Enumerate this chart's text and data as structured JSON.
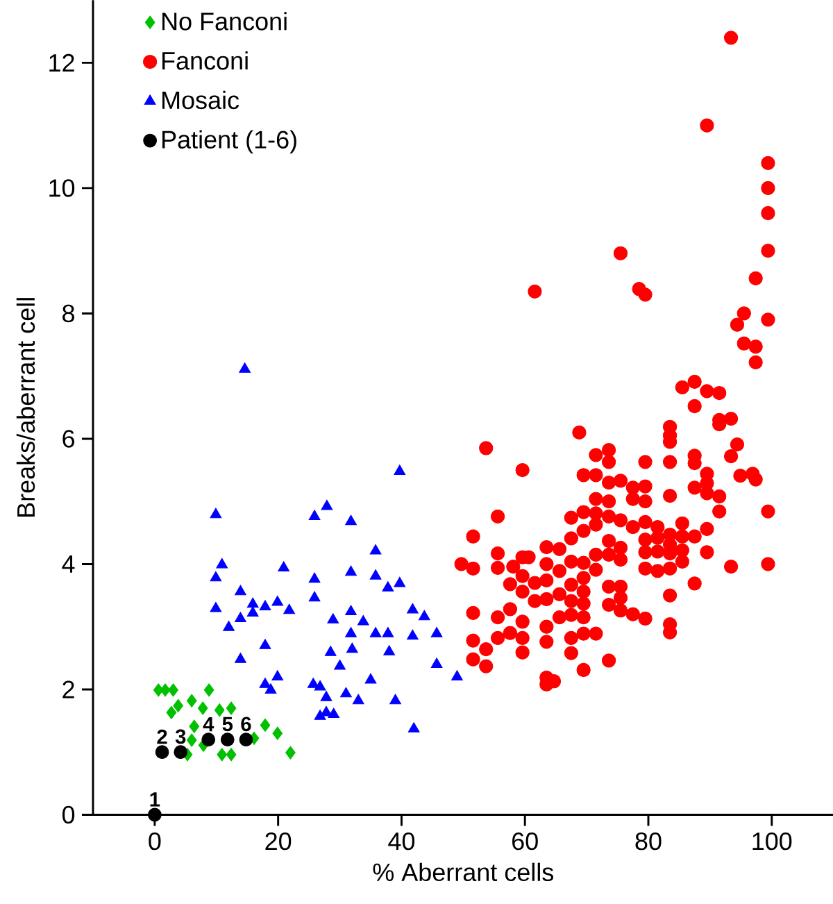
{
  "chart_data": {
    "type": "scatter",
    "xlabel": "% Aberrant cells",
    "ylabel": "Breaks/aberrant cell",
    "xlim": [
      -10,
      110
    ],
    "ylim": [
      0,
      13
    ],
    "xticks": [
      0,
      20,
      40,
      60,
      80,
      100
    ],
    "yticks": [
      0,
      2,
      4,
      6,
      8,
      10,
      12
    ],
    "legend": "top left",
    "series": [
      {
        "name": "No Fanconi",
        "color": "#00c000",
        "marker": "diamond",
        "x": [
          0.6,
          1.7,
          3.0,
          8.8,
          3.8,
          6.0,
          7.8,
          2.7,
          10.5,
          12.4,
          16.1,
          17.9,
          19.9,
          22.0,
          6.4,
          6.0,
          10.9,
          12.4,
          7.9,
          5.3
        ],
        "values": [
          1.99,
          1.99,
          1.99,
          1.99,
          1.74,
          1.82,
          1.7,
          1.63,
          1.67,
          1.7,
          1.22,
          1.43,
          1.3,
          0.99,
          1.41,
          1.19,
          0.96,
          0.96,
          1.11,
          0.96
        ]
      },
      {
        "name": "Fanconi",
        "color": "#ff0000",
        "marker": "circle",
        "x": [
          93.4,
          89.5,
          99.4,
          99.4,
          99.4,
          99.4,
          75.5,
          61.6,
          78.5,
          79.5,
          97.4,
          95.5,
          94.4,
          99.4,
          95.5,
          97.4,
          97.4,
          85.5,
          87.5,
          89.5,
          91.5,
          87.5,
          68.8,
          53.7,
          83.5,
          83.5,
          83.5,
          91.5,
          91.5,
          93.4,
          94.4,
          93.4,
          87.5,
          87.5,
          94.9,
          96.9,
          97.4,
          99.4,
          99.4,
          93.4,
          87.5,
          89.5,
          89.5,
          91.5,
          91.5,
          89.5,
          89.5,
          89.5,
          87.5,
          85.5,
          87.5,
          83.5,
          83.5,
          83.5,
          83.5,
          83.5,
          83.5,
          83.5,
          83.5,
          83.5,
          85.5,
          85.5,
          85.5,
          81.5,
          81.5,
          81.5,
          81.5,
          79.5,
          79.5,
          79.5,
          79.5,
          79.5,
          79.5,
          79.5,
          79.5,
          77.5,
          77.5,
          77.5,
          77.5,
          75.5,
          75.5,
          75.5,
          75.5,
          75.5,
          75.5,
          75.5,
          73.6,
          73.6,
          73.6,
          73.6,
          73.6,
          73.6,
          73.6,
          73.6,
          73.6,
          73.6,
          71.5,
          71.5,
          71.5,
          71.5,
          71.5,
          71.5,
          71.5,
          71.5,
          69.5,
          69.5,
          69.5,
          69.5,
          69.5,
          69.5,
          69.5,
          69.5,
          69.5,
          69.5,
          67.5,
          67.5,
          67.5,
          67.5,
          67.5,
          67.5,
          67.5,
          67.5,
          65.6,
          65.6,
          65.6,
          65.6,
          63.5,
          63.5,
          63.5,
          63.5,
          63.5,
          63.5,
          63.5,
          63.5,
          64.7,
          61.6,
          61.6,
          59.6,
          59.6,
          59.6,
          59.6,
          59.6,
          59.6,
          59.6,
          60.6,
          57.6,
          57.6,
          57.6,
          58.1,
          55.6,
          55.6,
          55.6,
          55.6,
          55.6,
          53.7,
          53.7,
          51.6,
          51.6,
          51.6,
          51.6,
          51.6,
          49.7
        ],
        "values": [
          12.4,
          11.0,
          10.4,
          10.0,
          9.6,
          9.0,
          8.96,
          8.35,
          8.39,
          8.3,
          8.56,
          8.0,
          7.82,
          7.9,
          7.52,
          7.47,
          7.22,
          6.82,
          6.91,
          6.76,
          6.73,
          6.52,
          6.1,
          5.85,
          6.19,
          6.05,
          5.95,
          6.3,
          6.23,
          6.32,
          5.91,
          5.72,
          5.73,
          5.61,
          5.41,
          5.44,
          5.35,
          4.84,
          4.0,
          3.96,
          3.69,
          4.19,
          4.56,
          4.84,
          5.08,
          5.44,
          5.29,
          5.13,
          5.22,
          4.65,
          4.44,
          5.63,
          5.09,
          4.47,
          4.31,
          4.17,
          3.93,
          3.5,
          3.04,
          2.91,
          4.44,
          4.22,
          4.04,
          4.59,
          4.42,
          4.2,
          3.89,
          5.63,
          5.24,
          5.0,
          4.67,
          4.39,
          4.19,
          3.93,
          3.13,
          5.22,
          5.04,
          4.59,
          3.2,
          5.33,
          4.7,
          4.26,
          4.07,
          3.64,
          3.46,
          3.26,
          5.82,
          5.63,
          5.3,
          5.0,
          4.76,
          4.37,
          4.15,
          3.64,
          3.35,
          2.46,
          5.74,
          5.42,
          5.04,
          4.81,
          4.63,
          4.15,
          3.91,
          2.89,
          5.42,
          4.83,
          4.53,
          4.02,
          3.78,
          3.56,
          3.37,
          3.15,
          2.89,
          2.31,
          4.74,
          4.41,
          4.04,
          3.67,
          3.41,
          3.19,
          2.82,
          2.58,
          4.24,
          3.89,
          3.52,
          3.15,
          4.27,
          4.0,
          3.74,
          3.44,
          3.0,
          2.76,
          2.19,
          2.08,
          2.13,
          3.7,
          3.41,
          5.5,
          4.11,
          3.81,
          3.56,
          3.08,
          2.82,
          2.59,
          4.11,
          3.68,
          3.28,
          2.9,
          3.96,
          4.76,
          4.17,
          3.94,
          3.15,
          2.82,
          2.64,
          2.37,
          4.44,
          3.93,
          3.22,
          2.78,
          2.48,
          4.0
        ]
      },
      {
        "name": "Mosaic",
        "color": "#0000ff",
        "marker": "triangle",
        "x": [
          14.6,
          39.7,
          9.9,
          27.9,
          25.9,
          31.8,
          35.8,
          10.9,
          9.9,
          20.9,
          25.9,
          31.8,
          35.8,
          37.8,
          39.7,
          13.9,
          9.9,
          15.9,
          17.9,
          19.9,
          21.8,
          25.9,
          15.9,
          13.9,
          12.0,
          28.9,
          31.8,
          33.8,
          41.8,
          43.7,
          45.7,
          31.8,
          35.8,
          37.8,
          41.8,
          17.9,
          13.9,
          28.5,
          17.9,
          18.8,
          19.9,
          25.7,
          26.8,
          27.8,
          26.8,
          27.8,
          42.0,
          38.0,
          45.7,
          49.0,
          35.0,
          33.0,
          39.0,
          32.0,
          30.0,
          31.0,
          29.0
        ],
        "values": [
          7.11,
          5.48,
          4.79,
          4.92,
          4.76,
          4.68,
          4.21,
          3.99,
          3.78,
          3.94,
          3.76,
          3.87,
          3.81,
          3.62,
          3.69,
          3.56,
          3.29,
          3.36,
          3.32,
          3.39,
          3.26,
          3.46,
          3.22,
          3.13,
          2.99,
          3.11,
          3.24,
          3.08,
          3.27,
          3.16,
          2.89,
          2.89,
          2.89,
          2.89,
          2.85,
          2.7,
          2.48,
          2.59,
          2.08,
          1.99,
          2.2,
          2.08,
          2.04,
          1.87,
          1.57,
          1.63,
          1.37,
          2.6,
          2.4,
          2.2,
          2.15,
          1.82,
          1.82,
          2.64,
          2.37,
          1.93,
          1.6
        ]
      },
      {
        "name": "Patient (1-6)",
        "color": "#000000",
        "marker": "circle",
        "x": [
          0,
          1.2,
          4.2,
          8.7,
          11.8,
          14.8
        ],
        "values": [
          0,
          1.0,
          1.0,
          1.2,
          1.2,
          1.2
        ]
      }
    ],
    "annotations": [
      {
        "text": "1",
        "x": 0,
        "y": 0
      },
      {
        "text": "2",
        "x": 1.2,
        "y": 1.0
      },
      {
        "text": "3",
        "x": 4.2,
        "y": 1.0
      },
      {
        "text": "4",
        "x": 8.7,
        "y": 1.2
      },
      {
        "text": "5",
        "x": 11.8,
        "y": 1.2
      },
      {
        "text": "6",
        "x": 14.8,
        "y": 1.2
      }
    ]
  }
}
